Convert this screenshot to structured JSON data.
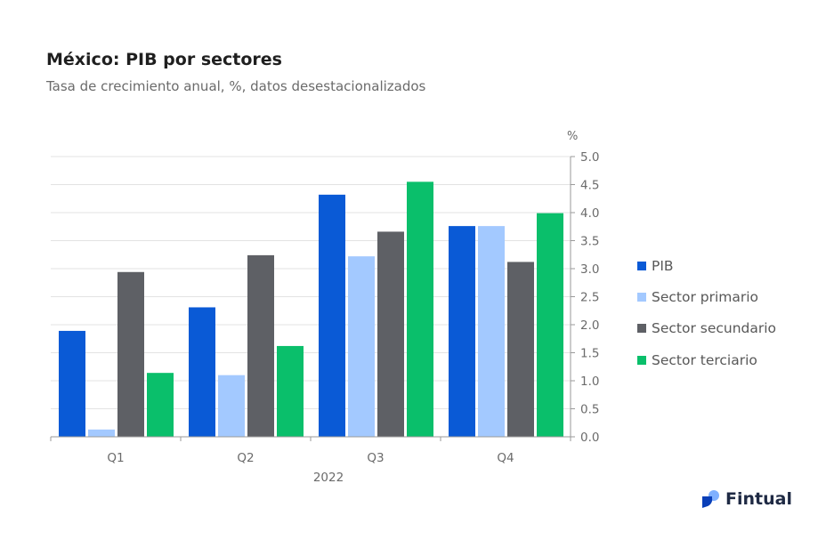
{
  "title": "México: PIB por sectores",
  "subtitle": "Tasa de crecimiento anual, %, datos desestacionalizados",
  "brand": {
    "name": "Fintual",
    "logo_icon": "fintual-logo-icon"
  },
  "chart_data": {
    "type": "bar",
    "title": "México: PIB por sectores",
    "subtitle": "Tasa de crecimiento anual, %, datos desestacionalizados",
    "categories": [
      "Q1",
      "Q2",
      "Q3",
      "Q4"
    ],
    "xlabel": "2022",
    "ylabel": "%",
    "ylim": [
      0,
      5
    ],
    "yticks": [
      "0.0",
      "0.5",
      "1.0",
      "1.5",
      "2.0",
      "2.5",
      "3.0",
      "3.5",
      "4.0",
      "4.5",
      "5.0"
    ],
    "y_axis_position": "right",
    "grid": true,
    "legend_position": "right",
    "series": [
      {
        "name": "PIB",
        "color": "#0a5ad6",
        "values": [
          1.89,
          2.31,
          4.32,
          3.76
        ]
      },
      {
        "name": "Sector primario",
        "color": "#a3c9ff",
        "values": [
          0.13,
          1.1,
          3.22,
          3.76
        ]
      },
      {
        "name": "Sector secundario",
        "color": "#5e6065",
        "values": [
          2.94,
          3.24,
          3.66,
          3.12
        ]
      },
      {
        "name": "Sector terciario",
        "color": "#0abf6b",
        "values": [
          1.14,
          1.62,
          4.55,
          3.99
        ]
      }
    ]
  }
}
